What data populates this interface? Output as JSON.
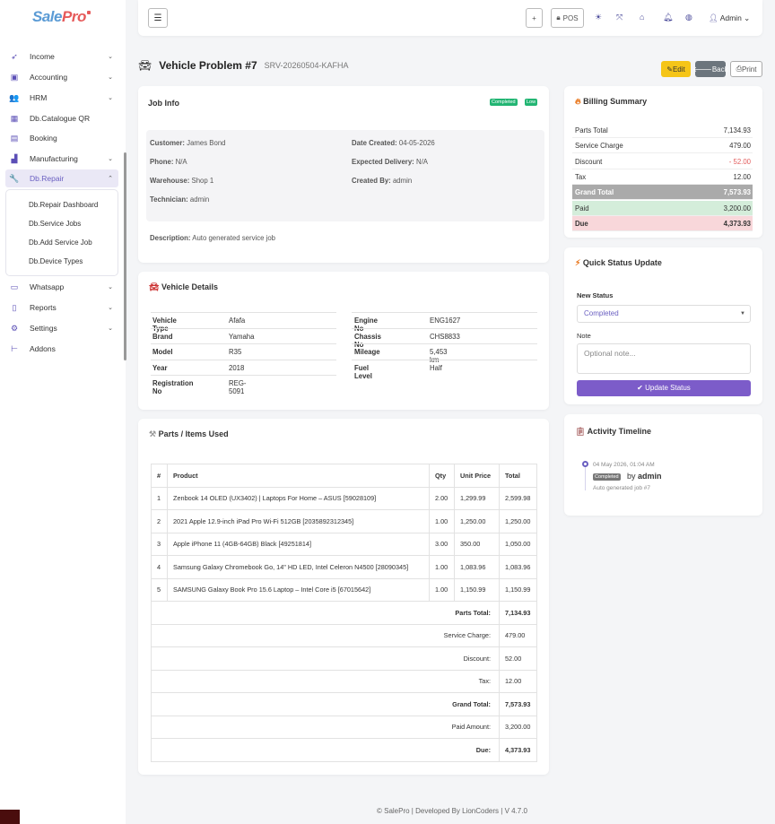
{
  "brand": {
    "sale": "Sale",
    "pro": "Pro"
  },
  "sidebar": {
    "items": [
      {
        "label": "Income",
        "icon": "rocket-icon",
        "chev": "⌄"
      },
      {
        "label": "Accounting",
        "icon": "wallet-icon",
        "chev": "⌄"
      },
      {
        "label": "HRM",
        "icon": "users-icon",
        "chev": "⌄"
      },
      {
        "label": "Db.Catalogue QR",
        "icon": "qr-icon",
        "chev": ""
      },
      {
        "label": "Booking",
        "icon": "calendar-icon",
        "chev": ""
      },
      {
        "label": "Manufacturing",
        "icon": "factory-icon",
        "chev": "⌄"
      },
      {
        "label": "Db.Repair",
        "icon": "wrench-icon",
        "chev": "⌃"
      },
      {
        "label": "Whatsapp",
        "icon": "chat-icon",
        "chev": "⌄"
      },
      {
        "label": "Reports",
        "icon": "report-icon",
        "chev": "⌄"
      },
      {
        "label": "Settings",
        "icon": "gear-icon",
        "chev": "⌄"
      },
      {
        "label": "Addons",
        "icon": "plug-icon",
        "chev": ""
      }
    ],
    "submenu": [
      "Db.Repair Dashboard",
      "Db.Service Jobs",
      "Db.Add Service Job",
      "Db.Device Types"
    ]
  },
  "topbar": {
    "plus": "+",
    "pos": "POS",
    "admin": "Admin"
  },
  "page": {
    "title": "Vehicle Problem #7",
    "code": "SRV-20260504-KAFHA",
    "edit": "Edit",
    "back": "Back",
    "print": "Print"
  },
  "job": {
    "title": "Job Info",
    "badge_status": "Completed",
    "badge_priority": "Low",
    "customer_label": "Customer:",
    "customer": "James Bond",
    "date_label": "Date Created:",
    "date": "04-05-2026",
    "phone_label": "Phone:",
    "phone": "N/A",
    "delivery_label": "Expected Delivery:",
    "delivery": "N/A",
    "warehouse_label": "Warehouse:",
    "warehouse": "Shop 1",
    "created_label": "Created By:",
    "created": "admin",
    "tech_label": "Technician:",
    "tech": "admin",
    "desc_label": "Description:",
    "desc": "Auto generated service job"
  },
  "vehicle": {
    "title": "Vehicle Details",
    "left": [
      {
        "k": "Vehicle Type",
        "v": "Afafa"
      },
      {
        "k": "Brand",
        "v": "Yamaha"
      },
      {
        "k": "Model",
        "v": "R35"
      },
      {
        "k": "Year",
        "v": "2018"
      },
      {
        "k": "Registration No",
        "v": "REG-5091"
      }
    ],
    "right": [
      {
        "k": "Engine No",
        "v": "ENG1627"
      },
      {
        "k": "Chassis No",
        "v": "CHS8833"
      },
      {
        "k": "Mileage",
        "v": "5,453 km"
      },
      {
        "k": "Fuel Level",
        "v": "Half"
      }
    ]
  },
  "parts": {
    "title": "Parts / Items Used",
    "headers": [
      "#",
      "Product",
      "Qty",
      "Unit Price",
      "Total"
    ],
    "rows": [
      [
        "1",
        "Zenbook 14 OLED (UX3402) | Laptops For Home – ASUS [59028109]",
        "2.00",
        "1,299.99",
        "2,599.98"
      ],
      [
        "2",
        "2021 Apple 12.9-inch iPad Pro Wi-Fi 512GB [2035892312345]",
        "1.00",
        "1,250.00",
        "1,250.00"
      ],
      [
        "3",
        "Apple iPhone 11 (4GB-64GB) Black [49251814]",
        "3.00",
        "350.00",
        "1,050.00"
      ],
      [
        "4",
        "Samsung Galaxy Chromebook Go, 14\" HD LED, Intel Celeron N4500 [28090345]",
        "1.00",
        "1,083.96",
        "1,083.96"
      ],
      [
        "5",
        "SAMSUNG Galaxy Book Pro 15.6 Laptop – Intel Core i5 [67015642]",
        "1.00",
        "1,150.99",
        "1,150.99"
      ]
    ],
    "totals": [
      {
        "label": "Parts Total:",
        "value": "7,134.93",
        "bold": true
      },
      {
        "label": "Service Charge:",
        "value": "479.00",
        "bold": false
      },
      {
        "label": "Discount:",
        "value": "52.00",
        "bold": false
      },
      {
        "label": "Tax:",
        "value": "12.00",
        "bold": false
      },
      {
        "label": "Grand Total:",
        "value": "7,573.93",
        "bold": true
      },
      {
        "label": "Paid Amount:",
        "value": "3,200.00",
        "bold": false
      },
      {
        "label": "Due:",
        "value": "4,373.93",
        "bold": true
      }
    ]
  },
  "billing": {
    "title": "Billing Summary",
    "rows": [
      {
        "l": "Parts Total",
        "r": "7,134.93",
        "style": "plain"
      },
      {
        "l": "Service Charge",
        "r": "479.00",
        "style": "plain"
      },
      {
        "l": "Discount",
        "r": "- 52.00",
        "style": "discount"
      },
      {
        "l": "Tax",
        "r": "12.00",
        "style": "plain"
      },
      {
        "l": "Grand Total",
        "r": "7,573.93",
        "style": "grand"
      },
      {
        "l": "Paid",
        "r": "3,200.00",
        "style": "paid"
      },
      {
        "l": "Due",
        "r": "4,373.93",
        "style": "due"
      }
    ]
  },
  "status": {
    "title": "Quick Status Update",
    "new_status_label": "New Status",
    "selected": "Completed",
    "note_label": "Note",
    "note_placeholder": "Optional note...",
    "button": "Update Status"
  },
  "timeline": {
    "title": "Activity Timeline",
    "time": "04 May 2026, 01:04 AM",
    "badge": "Completed",
    "by": "by",
    "user": "admin",
    "note": "Auto generated job #7"
  },
  "footer": "© SalePro | Developed By LionCoders | V 4.7.0",
  "colors": {
    "accent": "#7c5cc9",
    "warning": "#f5c518",
    "success": "#22b573",
    "danger": "#e25c5c"
  }
}
